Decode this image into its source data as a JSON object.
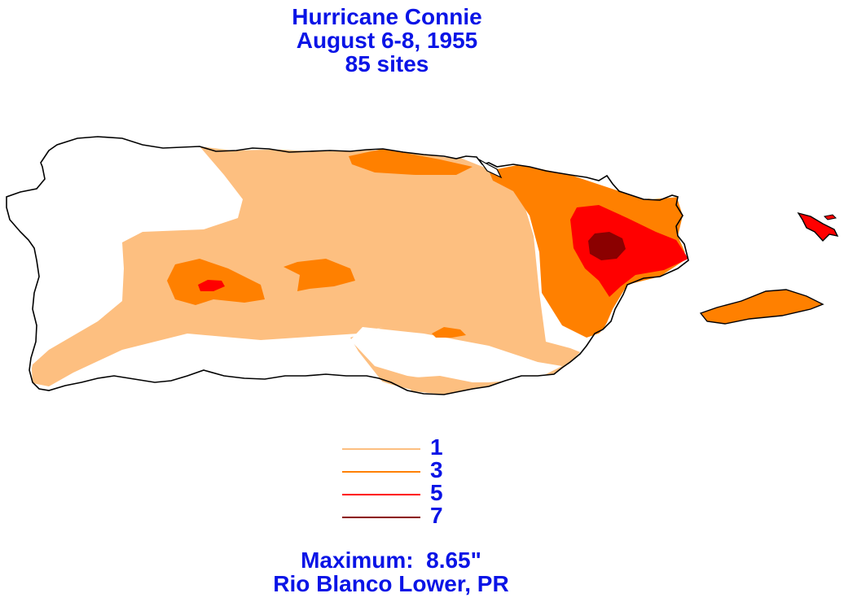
{
  "title": {
    "line1": "Hurricane Connie",
    "line2": "August 6-8, 1955",
    "line3": "85 sites"
  },
  "legend": [
    {
      "label": "1",
      "color": "#fdbf80"
    },
    {
      "label": "3",
      "color": "#ff8000"
    },
    {
      "label": "5",
      "color": "#ff0000"
    },
    {
      "label": "7",
      "color": "#8b0000"
    }
  ],
  "footer": {
    "maximum": "Maximum:  8.65\"",
    "location": "Rio Blanco Lower, PR"
  },
  "colors": {
    "text": "#0a14e6",
    "outline": "#000000",
    "contour_1": "#fdbf80",
    "contour_3": "#ff8000",
    "contour_5": "#ff0000",
    "contour_7": "#8b0000"
  }
}
